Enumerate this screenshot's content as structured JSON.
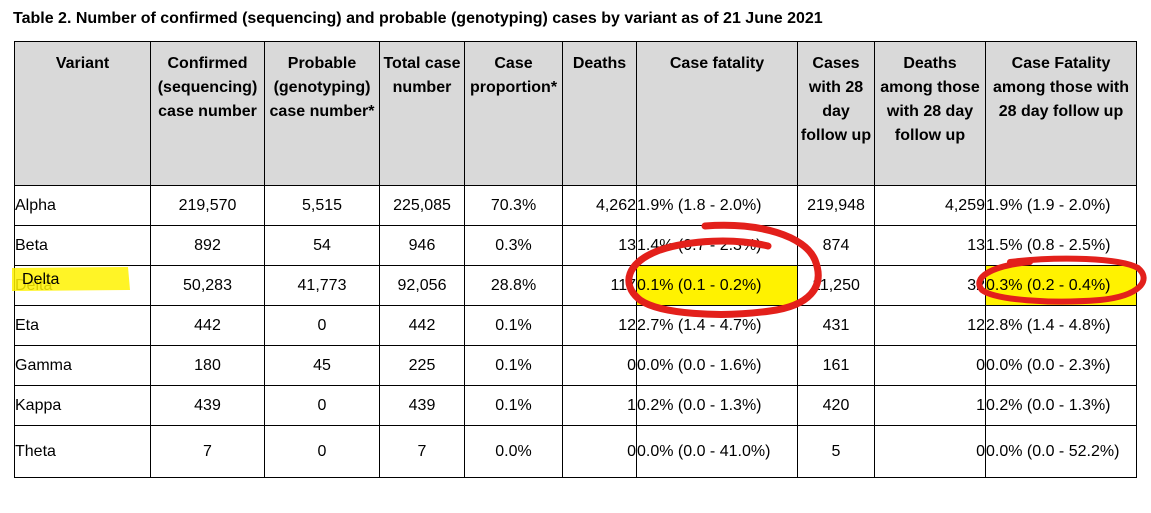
{
  "title": "Table 2. Number of confirmed (sequencing) and probable (genotyping) cases by variant as of 21 June 2021",
  "headers": [
    "Variant",
    "Confirmed (sequencing) case number",
    "Probable (genotyping) case number*",
    "Total case number",
    "Case proportion*",
    "Deaths",
    "Case fatality",
    "Cases with 28 day follow up",
    "Deaths among those with 28 day follow up",
    "Case Fatality among those with 28 day follow up"
  ],
  "rows": [
    {
      "variant": "Alpha",
      "confirmed": "219,570",
      "probable": "5,515",
      "total": "225,085",
      "proportion": "70.3%",
      "deaths": "4,262",
      "cfr": "1.9% (1.8 - 2.0%)",
      "cases28": "219,948",
      "deaths28": "4,259",
      "cfr28": "1.9% (1.9 - 2.0%)"
    },
    {
      "variant": "Beta",
      "confirmed": "892",
      "probable": "54",
      "total": "946",
      "proportion": "0.3%",
      "deaths": "13",
      "cfr": "1.4% (0.7 - 2.3%)",
      "cases28": "874",
      "deaths28": "13",
      "cfr28": "1.5% (0.8 - 2.5%)"
    },
    {
      "variant": "Delta",
      "confirmed": "50,283",
      "probable": "41,773",
      "total": "92,056",
      "proportion": "28.8%",
      "deaths": "117",
      "cfr": "0.1% (0.1 - 0.2%)",
      "cases28": "11,250",
      "deaths28": "32",
      "cfr28": "0.3% (0.2 - 0.4%)"
    },
    {
      "variant": "Eta",
      "confirmed": "442",
      "probable": "0",
      "total": "442",
      "proportion": "0.1%",
      "deaths": "12",
      "cfr": "2.7% (1.4 - 4.7%)",
      "cases28": "431",
      "deaths28": "12",
      "cfr28": "2.8% (1.4 - 4.8%)"
    },
    {
      "variant": "Gamma",
      "confirmed": "180",
      "probable": "45",
      "total": "225",
      "proportion": "0.1%",
      "deaths": "0",
      "cfr": "0.0% (0.0 - 1.6%)",
      "cases28": "161",
      "deaths28": "0",
      "cfr28": "0.0% (0.0 - 2.3%)"
    },
    {
      "variant": "Kappa",
      "confirmed": "439",
      "probable": "0",
      "total": "439",
      "proportion": "0.1%",
      "deaths": "1",
      "cfr": "0.2% (0.0 - 1.3%)",
      "cases28": "420",
      "deaths28": "1",
      "cfr28": "0.2% (0.0 - 1.3%)"
    },
    {
      "variant": "Theta",
      "confirmed": "7",
      "probable": "0",
      "total": "7",
      "proportion": "0.0%",
      "deaths": "0",
      "cfr": "0.0% (0.0 - 41.0%)",
      "cases28": "5",
      "deaths28": "0",
      "cfr28": "0.0% (0.0 - 52.2%)"
    }
  ],
  "colors": {
    "header_bg": "#d9d9d9",
    "highlight": "#fff200",
    "annotation_circle": "#e3201b"
  }
}
